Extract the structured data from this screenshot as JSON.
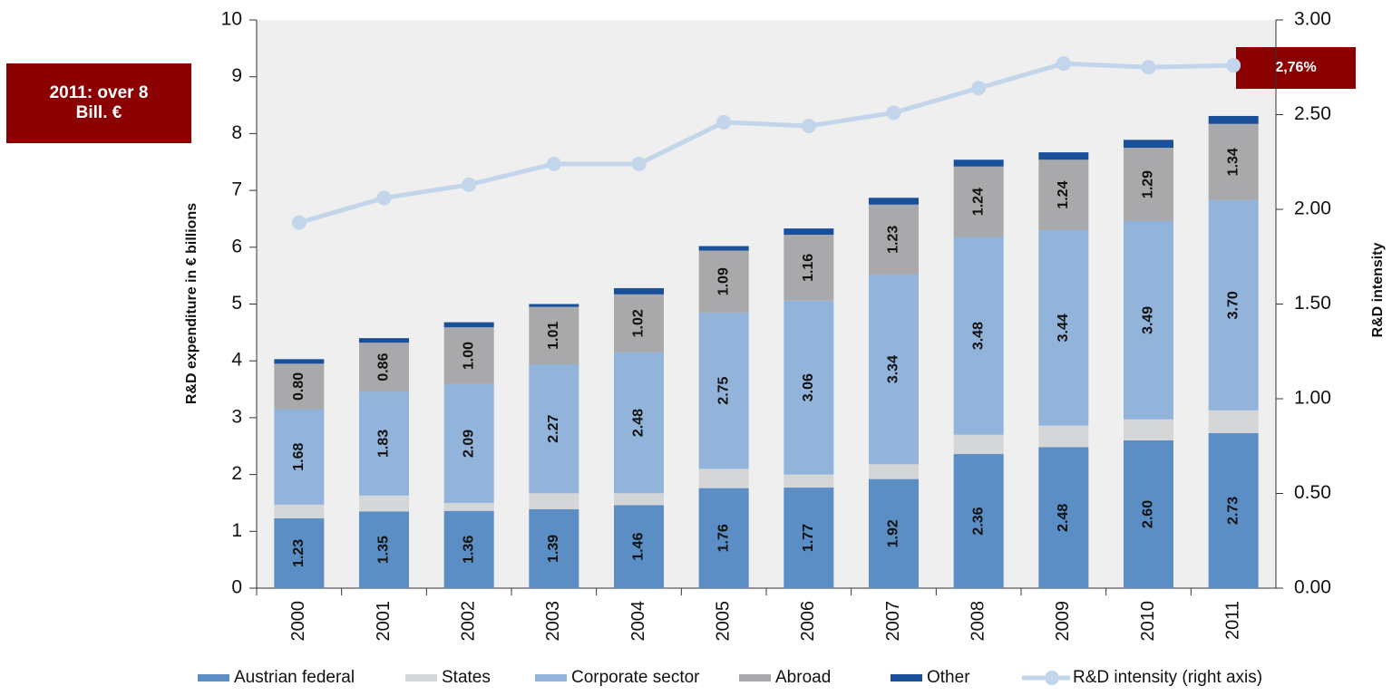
{
  "chart_data": {
    "type": "bar",
    "ylabel": "R&D expenditure in € billions",
    "y2label": "R&D intensity",
    "categories": [
      "2000",
      "2001",
      "2002",
      "2003",
      "2004",
      "2005",
      "2006",
      "2007",
      "2008",
      "2009",
      "2010",
      "2011"
    ],
    "series": [
      {
        "name": "Austrian federal",
        "color": "#5b8ec4",
        "values": [
          1.23,
          1.35,
          1.36,
          1.39,
          1.46,
          1.76,
          1.77,
          1.92,
          2.36,
          2.48,
          2.6,
          2.73
        ],
        "value_labels": [
          "1.23",
          "1.35",
          "1.36",
          "1.39",
          "1.46",
          "1.76",
          "1.77",
          "1.92",
          "2.36",
          "2.48",
          "2.60",
          "2.73"
        ]
      },
      {
        "name": "States",
        "color": "#d4d6d8",
        "values": [
          0.24,
          0.28,
          0.14,
          0.28,
          0.21,
          0.34,
          0.23,
          0.26,
          0.34,
          0.38,
          0.37,
          0.4
        ]
      },
      {
        "name": "Corporate sector",
        "color": "#92b3da",
        "values": [
          1.68,
          1.83,
          2.09,
          2.27,
          2.48,
          2.75,
          3.06,
          3.34,
          3.48,
          3.44,
          3.49,
          3.7
        ],
        "value_labels": [
          "1.68",
          "1.83",
          "2.09",
          "2.27",
          "2.48",
          "2.75",
          "3.06",
          "3.34",
          "3.48",
          "3.44",
          "3.49",
          "3.70"
        ]
      },
      {
        "name": "Abroad",
        "color": "#a9a9ab",
        "values": [
          0.8,
          0.86,
          1.0,
          1.01,
          1.02,
          1.09,
          1.16,
          1.23,
          1.24,
          1.24,
          1.29,
          1.34
        ],
        "value_labels": [
          "0.80",
          "0.86",
          "1.00",
          "1.01",
          "1.02",
          "1.09",
          "1.16",
          "1.23",
          "1.24",
          "1.24",
          "1.29",
          "1.34"
        ]
      },
      {
        "name": "Other",
        "color": "#1a4f99",
        "values": [
          0.08,
          0.08,
          0.09,
          0.05,
          0.11,
          0.08,
          0.11,
          0.12,
          0.12,
          0.13,
          0.14,
          0.14
        ]
      },
      {
        "name": "R&D intensity (right axis)",
        "color": "#c3d5ea",
        "type": "line",
        "axis": "y2",
        "values": [
          1.93,
          2.06,
          2.13,
          2.24,
          2.24,
          2.46,
          2.44,
          2.51,
          2.64,
          2.77,
          2.75,
          2.76
        ]
      }
    ],
    "ylim": [
      0,
      10
    ],
    "yticks": [
      0,
      1,
      2,
      3,
      4,
      5,
      6,
      7,
      8,
      9,
      10
    ],
    "y2lim": [
      0,
      3
    ],
    "y2ticks": [
      {
        "value": 0,
        "label": "0.00"
      },
      {
        "value": 0.5,
        "label": "0.50"
      },
      {
        "value": 1,
        "label": "1.00"
      },
      {
        "value": 1.5,
        "label": "1.50"
      },
      {
        "value": 2,
        "label": "2.00"
      },
      {
        "value": 2.5,
        "label": "2.50"
      },
      {
        "value": 3,
        "label": "3.00"
      }
    ],
    "annotations": [
      "2011: over 8 Bill. €",
      "2,76%"
    ],
    "legend": "bottom"
  }
}
